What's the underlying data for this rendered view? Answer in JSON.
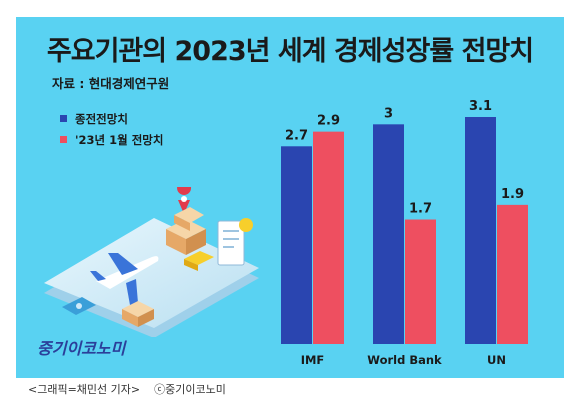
{
  "title": "주요기관의 2023년 세계 경제성장률 전망치",
  "source": "자료 : 현대경제연구원",
  "logo": "중기이코노미",
  "caption": {
    "credit": "<그래픽=채민선 기자>",
    "copyright": "ⓒ중기이코노미"
  },
  "colors": {
    "background": "#59d2f2",
    "series1": "#2a45b0",
    "series2": "#ee4f60"
  },
  "chart_data": {
    "type": "bar",
    "title": "주요기관의 2023년 세계 경제성장률 전망치",
    "categories": [
      "IMF",
      "World Bank",
      "UN"
    ],
    "series": [
      {
        "name": "종전전망치",
        "values": [
          2.7,
          3,
          3.1
        ],
        "labels": [
          "2.7",
          "3",
          "3.1"
        ]
      },
      {
        "name": "'23년 1월 전망치",
        "values": [
          2.9,
          1.7,
          1.9
        ],
        "labels": [
          "2.9",
          "1.7",
          "1.9"
        ]
      }
    ],
    "ylim": [
      0,
      3.1
    ],
    "legend": "top-left",
    "grid": false
  }
}
